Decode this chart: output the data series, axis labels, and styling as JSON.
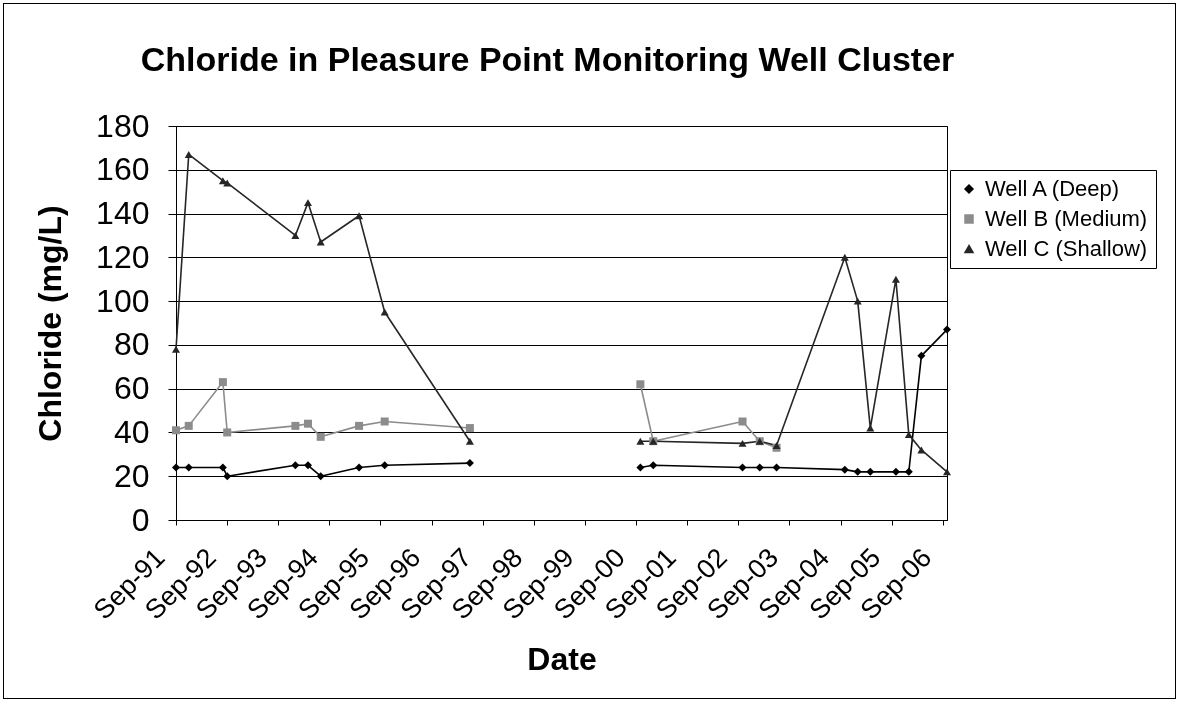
{
  "chart_data": {
    "type": "line",
    "title": "Chloride in Pleasure Point Monitoring Well Cluster",
    "xlabel": "Date",
    "ylabel": "Chloride (mg/L)",
    "x": [
      "1991-09",
      "1991-12",
      "1992-08",
      "1992-09",
      "1994-01",
      "1994-04",
      "1994-07",
      "1995-04",
      "1995-10",
      "1997-06",
      "1999-03",
      "2000-10",
      "2001-01",
      "2002-10",
      "2003-02",
      "2003-06",
      "2004-10",
      "2005-01",
      "2005-04",
      "2005-10",
      "2006-01",
      "2006-04",
      "2006-10"
    ],
    "series": [
      {
        "name": "Well A (Deep)",
        "color": "#000000",
        "marker": "diamond",
        "values": [
          24,
          24,
          24,
          20,
          25,
          25,
          20,
          24,
          25,
          26,
          null,
          24,
          25,
          24,
          24,
          24,
          23,
          22,
          22,
          22,
          22,
          75,
          87
        ]
      },
      {
        "name": "Well B (Medium)",
        "color": "#8c8c8c",
        "marker": "square",
        "values": [
          41,
          43,
          63,
          40,
          43,
          44,
          38,
          43,
          45,
          42,
          null,
          62,
          36,
          45,
          36,
          33,
          null,
          null,
          null,
          null,
          null,
          null,
          null
        ]
      },
      {
        "name": "Well C (Shallow)",
        "color": "#262626",
        "marker": "triangle",
        "values": [
          78,
          167,
          155,
          154,
          130,
          145,
          127,
          139,
          95,
          36,
          null,
          36,
          36,
          35,
          36,
          34,
          120,
          100,
          42,
          110,
          39,
          32,
          22
        ]
      }
    ],
    "xlim": [
      "1991-09",
      "2006-10"
    ],
    "xticks": [
      {
        "value": "1991-09",
        "label": "Sep-91"
      },
      {
        "value": "1992-09",
        "label": "Sep-92"
      },
      {
        "value": "1993-09",
        "label": "Sep-93"
      },
      {
        "value": "1994-09",
        "label": "Sep-94"
      },
      {
        "value": "1995-09",
        "label": "Sep-95"
      },
      {
        "value": "1996-09",
        "label": "Sep-96"
      },
      {
        "value": "1997-09",
        "label": "Sep-97"
      },
      {
        "value": "1998-09",
        "label": "Sep-98"
      },
      {
        "value": "1999-09",
        "label": "Sep-99"
      },
      {
        "value": "2000-09",
        "label": "Sep-00"
      },
      {
        "value": "2001-09",
        "label": "Sep-01"
      },
      {
        "value": "2002-09",
        "label": "Sep-02"
      },
      {
        "value": "2003-09",
        "label": "Sep-03"
      },
      {
        "value": "2004-09",
        "label": "Sep-04"
      },
      {
        "value": "2005-09",
        "label": "Sep-05"
      },
      {
        "value": "2006-09",
        "label": "Sep-06"
      }
    ],
    "ylim": [
      0,
      180
    ],
    "yticks": [
      0,
      20,
      40,
      60,
      80,
      100,
      120,
      140,
      160,
      180
    ],
    "grid": "y",
    "legend": "right",
    "line_style": "solid"
  }
}
